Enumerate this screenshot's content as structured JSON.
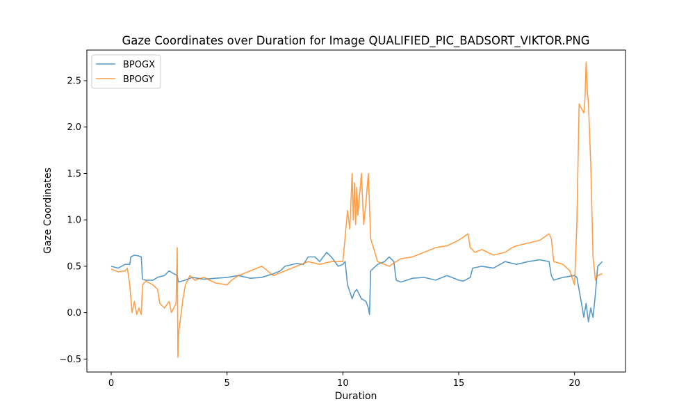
{
  "chart_data": {
    "type": "line",
    "title": "Gaze Coordinates over Duration for Image QUALIFIED_PIC_BADSORT_VIKTOR.PNG",
    "xlabel": "Duration",
    "ylabel": "Gaze Coordinates",
    "xlim": [
      -1.05,
      22.2
    ],
    "ylim": [
      -0.64,
      2.83
    ],
    "xticks": [
      0,
      5,
      10,
      15,
      20
    ],
    "xtick_labels": [
      "0",
      "5",
      "10",
      "15",
      "20"
    ],
    "yticks": [
      -0.5,
      0.0,
      0.5,
      1.0,
      1.5,
      2.0,
      2.5
    ],
    "ytick_labels": [
      "−0.5",
      "0.0",
      "0.5",
      "1.0",
      "1.5",
      "2.0",
      "2.5"
    ],
    "grid": false,
    "legend_position": "top-left",
    "series": [
      {
        "name": "BPOGX",
        "color": "#1f77b4",
        "x": [
          0,
          0.3,
          0.6,
          0.8,
          0.85,
          1.0,
          1.2,
          1.3,
          1.35,
          1.5,
          1.8,
          2.0,
          2.3,
          2.5,
          2.7,
          2.85,
          2.9,
          3.2,
          3.5,
          4.0,
          4.5,
          5.0,
          5.5,
          6.0,
          6.5,
          7.0,
          7.3,
          7.5,
          8.0,
          8.3,
          8.5,
          8.8,
          9.0,
          9.3,
          9.5,
          9.8,
          10.0,
          10.1,
          10.2,
          10.4,
          10.5,
          10.6,
          10.8,
          11.0,
          11.1,
          11.15,
          11.2,
          11.5,
          11.8,
          12.0,
          12.2,
          12.3,
          12.5,
          13.0,
          13.5,
          14.0,
          14.5,
          15.0,
          15.2,
          15.5,
          15.6,
          16.0,
          16.5,
          17.0,
          17.5,
          18.0,
          18.5,
          18.9,
          19.0,
          19.1,
          19.5,
          20.0,
          20.1,
          20.3,
          20.4,
          20.5,
          20.6,
          20.7,
          20.8,
          20.9,
          21.0,
          21.2
        ],
        "y": [
          0.5,
          0.48,
          0.52,
          0.52,
          0.6,
          0.62,
          0.61,
          0.6,
          0.36,
          0.35,
          0.35,
          0.38,
          0.4,
          0.45,
          0.42,
          0.4,
          0.33,
          0.35,
          0.38,
          0.36,
          0.37,
          0.38,
          0.4,
          0.37,
          0.38,
          0.42,
          0.45,
          0.5,
          0.53,
          0.52,
          0.6,
          0.6,
          0.55,
          0.65,
          0.6,
          0.5,
          0.52,
          0.55,
          0.3,
          0.15,
          0.22,
          0.25,
          0.15,
          0.12,
          0.05,
          -0.02,
          0.45,
          0.52,
          0.55,
          0.6,
          0.55,
          0.35,
          0.33,
          0.37,
          0.38,
          0.35,
          0.4,
          0.35,
          0.34,
          0.38,
          0.48,
          0.5,
          0.48,
          0.55,
          0.52,
          0.55,
          0.57,
          0.55,
          0.4,
          0.35,
          0.38,
          0.4,
          0.38,
          0.1,
          -0.05,
          0.1,
          -0.1,
          0.05,
          -0.05,
          0.2,
          0.5,
          0.55
        ]
      },
      {
        "name": "BPOGY",
        "color": "#ff7f0e",
        "x": [
          0,
          0.3,
          0.6,
          0.7,
          0.8,
          0.9,
          1.0,
          1.1,
          1.2,
          1.3,
          1.35,
          1.5,
          1.8,
          2.0,
          2.1,
          2.3,
          2.5,
          2.6,
          2.8,
          2.85,
          2.88,
          2.92,
          3.1,
          3.2,
          3.4,
          3.6,
          4.0,
          4.5,
          5.0,
          5.2,
          5.5,
          6.0,
          6.5,
          7.0,
          7.5,
          8.0,
          8.5,
          9.0,
          9.5,
          10.0,
          10.1,
          10.2,
          10.3,
          10.4,
          10.45,
          10.5,
          10.55,
          10.6,
          10.65,
          10.7,
          10.8,
          10.9,
          11.0,
          11.1,
          11.2,
          11.5,
          12.0,
          12.3,
          12.5,
          13.0,
          13.5,
          14.0,
          14.5,
          15.0,
          15.4,
          15.5,
          15.7,
          16.0,
          16.5,
          17.0,
          17.3,
          17.5,
          18.0,
          18.5,
          18.9,
          19.0,
          19.1,
          19.5,
          19.8,
          20.0,
          20.1,
          20.2,
          20.3,
          20.4,
          20.45,
          20.5,
          20.55,
          20.6,
          20.7,
          20.8,
          20.9,
          21.0,
          21.2
        ],
        "y": [
          0.47,
          0.44,
          0.45,
          0.48,
          0.3,
          0.0,
          0.12,
          -0.02,
          0.05,
          -0.02,
          0.3,
          0.34,
          0.3,
          0.25,
          0.1,
          0.05,
          0.12,
          0.0,
          0.1,
          0.7,
          -0.48,
          -0.2,
          0.15,
          0.3,
          0.4,
          0.35,
          0.38,
          0.32,
          0.3,
          0.35,
          0.4,
          0.45,
          0.5,
          0.4,
          0.45,
          0.5,
          0.55,
          0.52,
          0.55,
          0.55,
          0.82,
          1.1,
          0.9,
          1.5,
          1.0,
          1.4,
          0.95,
          1.35,
          1.05,
          1.2,
          1.5,
          0.95,
          1.2,
          1.5,
          0.8,
          0.55,
          0.5,
          0.55,
          0.58,
          0.6,
          0.65,
          0.7,
          0.72,
          0.78,
          0.85,
          0.7,
          0.65,
          0.68,
          0.62,
          0.65,
          0.7,
          0.72,
          0.75,
          0.78,
          0.85,
          0.8,
          0.55,
          0.52,
          0.45,
          0.3,
          0.95,
          2.25,
          2.2,
          2.15,
          2.3,
          2.7,
          2.4,
          2.25,
          1.6,
          0.6,
          0.35,
          0.4,
          0.42
        ]
      }
    ]
  }
}
